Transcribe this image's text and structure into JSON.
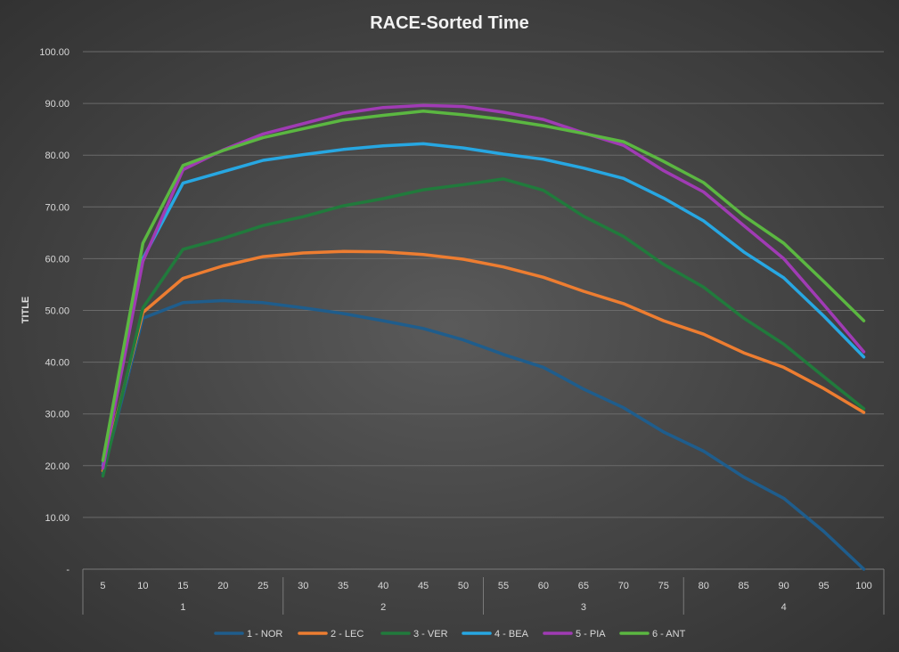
{
  "chart_data": {
    "type": "line",
    "title": "RACE-Sorted Time",
    "ylabel": "TITLE",
    "xlabel": "",
    "ylim": [
      0,
      100
    ],
    "yticks": [
      "-",
      "10.00",
      "20.00",
      "30.00",
      "40.00",
      "50.00",
      "60.00",
      "70.00",
      "80.00",
      "90.00",
      "100.00"
    ],
    "x": [
      "5",
      "10",
      "15",
      "20",
      "25",
      "30",
      "35",
      "40",
      "45",
      "50",
      "55",
      "60",
      "65",
      "70",
      "75",
      "80",
      "85",
      "90",
      "95",
      "100"
    ],
    "groups": [
      {
        "label": "1",
        "count": 5
      },
      {
        "label": "2",
        "count": 5
      },
      {
        "label": "3",
        "count": 5
      },
      {
        "label": "4",
        "count": 5
      }
    ],
    "grid": true,
    "legend_position": "bottom",
    "series": [
      {
        "name": "1 - NOR",
        "color": "#1f5d8c",
        "values": [
          18.5,
          48.5,
          51.5,
          51.9,
          51.5,
          50.5,
          49.4,
          48.0,
          46.5,
          44.3,
          41.5,
          39.0,
          34.8,
          31.2,
          26.5,
          22.8,
          17.8,
          13.7,
          7.3,
          0.0
        ]
      },
      {
        "name": "2 - LEC",
        "color": "#ed7d31",
        "values": [
          19.0,
          49.6,
          56.2,
          58.6,
          60.4,
          61.1,
          61.4,
          61.3,
          60.8,
          59.9,
          58.4,
          56.4,
          53.7,
          51.3,
          48.0,
          45.4,
          41.8,
          39.0,
          34.9,
          30.3
        ]
      },
      {
        "name": "3 - VER",
        "color": "#217a3c",
        "values": [
          18.0,
          50.5,
          61.8,
          63.9,
          66.4,
          68.1,
          70.2,
          71.6,
          73.3,
          74.3,
          75.4,
          73.2,
          68.2,
          64.3,
          58.9,
          54.5,
          48.5,
          43.5,
          37.2,
          31.0
        ]
      },
      {
        "name": "4 - BEA",
        "color": "#27a7e2",
        "values": [
          20.0,
          60.0,
          74.6,
          76.8,
          79.0,
          80.1,
          81.1,
          81.8,
          82.2,
          81.4,
          80.2,
          79.2,
          77.5,
          75.5,
          71.7,
          67.3,
          61.3,
          56.3,
          48.9,
          41.0
        ]
      },
      {
        "name": "5 - PIA",
        "color": "#a03bb4",
        "values": [
          19.5,
          59.5,
          77.2,
          81.0,
          84.1,
          86.1,
          88.1,
          89.2,
          89.6,
          89.4,
          88.3,
          86.9,
          84.3,
          81.9,
          77.0,
          72.9,
          66.4,
          60.0,
          51.1,
          42.0
        ]
      },
      {
        "name": "6 - ANT",
        "color": "#5bb741",
        "values": [
          21.0,
          63.0,
          78.0,
          80.9,
          83.4,
          85.1,
          86.8,
          87.7,
          88.5,
          87.8,
          86.9,
          85.7,
          84.2,
          82.6,
          78.8,
          74.7,
          68.3,
          63.0,
          55.6,
          48.0
        ]
      }
    ]
  }
}
